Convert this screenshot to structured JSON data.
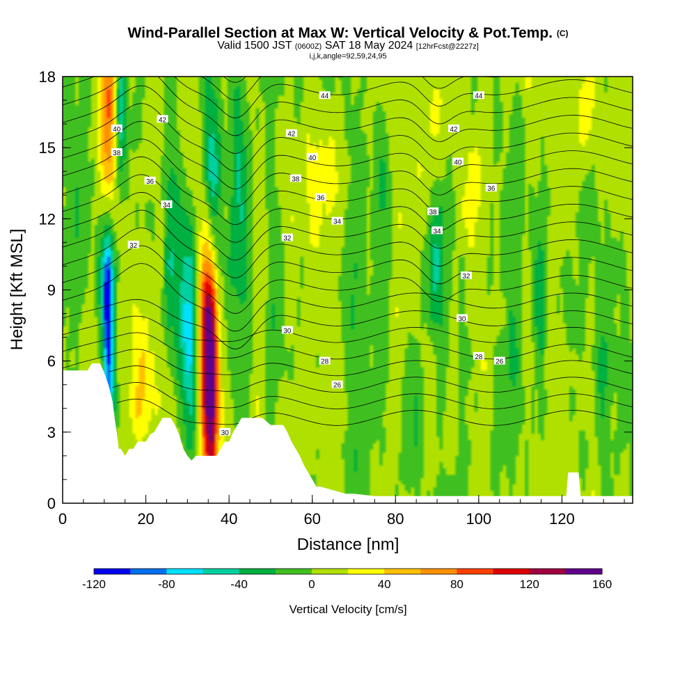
{
  "title": {
    "main": "Wind-Parallel Section at Max W: Vertical Velocity & Pot.Temp.",
    "copyright": "(C)",
    "valid_prefix": "Valid 1500 JST",
    "valid_utc": "(0600Z)",
    "valid_date": "SAT 18 May 2024",
    "forecast": "[12hrFcst@2227z]",
    "indices": "i,j,k,angle=92,59,24,95"
  },
  "colors": {
    "levels": [
      "#0000ee",
      "#0070ee",
      "#00e0ff",
      "#00d0a0",
      "#00b040",
      "#40c020",
      "#b0e000",
      "#ffff00",
      "#ffc000",
      "#ff9000",
      "#ff4000",
      "#e00000",
      "#a00040",
      "#60008c"
    ],
    "terrain": "#ffffff"
  },
  "chart_data": {
    "type": "heatmap",
    "xlabel": "Distance [nm]",
    "ylabel": "Height [Kft MSL]",
    "xlim": [
      0,
      137
    ],
    "ylim": [
      0,
      18
    ],
    "xticks": [
      "0",
      "20",
      "40",
      "60",
      "80",
      "100",
      "120"
    ],
    "yticks": [
      "0",
      "3",
      "6",
      "9",
      "12",
      "15",
      "18"
    ],
    "colorbar": {
      "label": "Vertical Velocity [cm/s]",
      "levels": [
        -120,
        -100,
        -80,
        -60,
        -40,
        -20,
        0,
        20,
        40,
        60,
        80,
        100,
        120,
        140,
        160
      ],
      "tick_labels": [
        "-120",
        "-80",
        "-40",
        "0",
        "40",
        "80",
        "120",
        "160"
      ]
    },
    "contour_field": "Potential temperature",
    "theta_levels": [
      26,
      28,
      30,
      32,
      34,
      36,
      38,
      40,
      42,
      44
    ],
    "contour_labels": [
      {
        "text": "44",
        "x": 63,
        "y": 17.2
      },
      {
        "text": "44",
        "x": 100,
        "y": 17.2
      },
      {
        "text": "42",
        "x": 24,
        "y": 16.2
      },
      {
        "text": "42",
        "x": 55,
        "y": 15.6
      },
      {
        "text": "42",
        "x": 94,
        "y": 15.8
      },
      {
        "text": "40",
        "x": 13,
        "y": 15.8
      },
      {
        "text": "40",
        "x": 60,
        "y": 14.6
      },
      {
        "text": "40",
        "x": 95,
        "y": 14.4
      },
      {
        "text": "38",
        "x": 13,
        "y": 14.8
      },
      {
        "text": "38",
        "x": 56,
        "y": 13.7
      },
      {
        "text": "38",
        "x": 89,
        "y": 12.3
      },
      {
        "text": "36",
        "x": 21,
        "y": 13.6
      },
      {
        "text": "36",
        "x": 62,
        "y": 12.9
      },
      {
        "text": "36",
        "x": 103,
        "y": 13.3
      },
      {
        "text": "34",
        "x": 25,
        "y": 12.6
      },
      {
        "text": "34",
        "x": 66,
        "y": 11.9
      },
      {
        "text": "34",
        "x": 90,
        "y": 11.5
      },
      {
        "text": "32",
        "x": 17,
        "y": 10.9
      },
      {
        "text": "32",
        "x": 54,
        "y": 11.2
      },
      {
        "text": "32",
        "x": 97,
        "y": 9.6
      },
      {
        "text": "30",
        "x": 54,
        "y": 7.3
      },
      {
        "text": "30",
        "x": 96,
        "y": 7.8
      },
      {
        "text": "30",
        "x": 39,
        "y": 3.0
      },
      {
        "text": "28",
        "x": 63,
        "y": 6.0
      },
      {
        "text": "28",
        "x": 100,
        "y": 6.2
      },
      {
        "text": "26",
        "x": 66,
        "y": 5.0
      },
      {
        "text": "26",
        "x": 105,
        "y": 6.0
      }
    ],
    "w_max_cm_s": 150,
    "w_max_location": {
      "x": 35.5,
      "y": 4.5
    },
    "terrain_kft": [
      [
        0,
        5.6
      ],
      [
        2,
        5.6
      ],
      [
        4,
        5.6
      ],
      [
        6,
        5.6
      ],
      [
        7,
        5.9
      ],
      [
        9,
        5.9
      ],
      [
        10,
        5.5
      ],
      [
        11,
        5.0
      ],
      [
        12,
        4.3
      ],
      [
        12.5,
        3.6
      ],
      [
        13,
        3.0
      ],
      [
        13.5,
        2.3
      ],
      [
        14,
        2.3
      ],
      [
        15,
        2.0
      ],
      [
        16,
        2.3
      ],
      [
        17,
        2.3
      ],
      [
        18,
        2.6
      ],
      [
        19,
        2.6
      ],
      [
        20,
        2.6
      ],
      [
        21,
        2.9
      ],
      [
        22,
        3.0
      ],
      [
        23,
        3.3
      ],
      [
        24,
        3.6
      ],
      [
        26,
        3.6
      ],
      [
        27,
        3.3
      ],
      [
        28,
        2.9
      ],
      [
        29,
        2.3
      ],
      [
        30,
        2.0
      ],
      [
        31,
        1.8
      ],
      [
        32,
        2.0
      ],
      [
        34,
        2.0
      ],
      [
        36,
        2.0
      ],
      [
        37,
        2.0
      ],
      [
        38,
        2.3
      ],
      [
        39,
        2.6
      ],
      [
        40,
        2.6
      ],
      [
        41,
        3.0
      ],
      [
        42,
        3.3
      ],
      [
        43,
        3.6
      ],
      [
        46,
        3.6
      ],
      [
        48,
        3.6
      ],
      [
        50,
        3.3
      ],
      [
        53,
        3.3
      ],
      [
        54,
        3.0
      ],
      [
        55,
        2.6
      ],
      [
        56,
        2.3
      ],
      [
        57,
        2.0
      ],
      [
        58,
        1.6
      ],
      [
        59,
        1.3
      ],
      [
        60,
        1.0
      ],
      [
        61,
        0.7
      ],
      [
        62,
        0.7
      ],
      [
        68,
        0.4
      ],
      [
        70,
        0.4
      ],
      [
        75,
        0.3
      ],
      [
        85,
        0.3
      ],
      [
        100,
        0.3
      ],
      [
        115,
        0.3
      ],
      [
        121,
        0.3
      ],
      [
        121.5,
        1.3
      ],
      [
        124,
        1.3
      ],
      [
        124.5,
        0.3
      ],
      [
        137,
        0.3
      ]
    ],
    "updrafts": [
      {
        "x": 35.5,
        "y": 4.5,
        "w": 150,
        "wx": 1.3,
        "wy": 3.2
      },
      {
        "x": 35.0,
        "y": 8.0,
        "w": 90,
        "wx": 1.6,
        "wy": 2.6
      },
      {
        "x": 11.0,
        "y": 16.5,
        "w": 90,
        "wx": 1.4,
        "wy": 3.0
      },
      {
        "x": 19.0,
        "y": 5.0,
        "w": 30,
        "wx": 1.4,
        "wy": 2.0
      },
      {
        "x": 62.0,
        "y": 13.5,
        "w": 25,
        "wx": 2.0,
        "wy": 2.5
      },
      {
        "x": 97.0,
        "y": 13.0,
        "w": 25,
        "wx": 2.0,
        "wy": 2.0
      },
      {
        "x": 90.0,
        "y": 17.0,
        "w": 25,
        "wx": 1.5,
        "wy": 1.5
      },
      {
        "x": 54.0,
        "y": 3.5,
        "w": 25,
        "wx": 1.6,
        "wy": 1.2
      },
      {
        "x": 125.0,
        "y": 16.0,
        "w": 25,
        "wx": 1.5,
        "wy": 1.5
      }
    ],
    "downdrafts": [
      {
        "x": 30.0,
        "y": 7.5,
        "w": -80,
        "wx": 1.6,
        "wy": 3.2
      },
      {
        "x": 11.0,
        "y": 6.5,
        "w": -110,
        "wx": 1.0,
        "wy": 3.0
      },
      {
        "x": 10.5,
        "y": 9.5,
        "w": -60,
        "wx": 1.4,
        "wy": 1.5
      },
      {
        "x": 14.0,
        "y": 17.0,
        "w": -70,
        "wx": 1.2,
        "wy": 2.0
      },
      {
        "x": 36.0,
        "y": 14.0,
        "w": -50,
        "wx": 1.6,
        "wy": 5.0
      },
      {
        "x": 42.0,
        "y": 14.0,
        "w": -50,
        "wx": 1.4,
        "wy": 5.0
      },
      {
        "x": 90.0,
        "y": 10.0,
        "w": -55,
        "wx": 1.6,
        "wy": 2.0
      },
      {
        "x": 26.0,
        "y": 12.0,
        "w": -35,
        "wx": 1.6,
        "wy": 4.0
      },
      {
        "x": 51.0,
        "y": 9.0,
        "w": -30,
        "wx": 1.5,
        "wy": 6.0
      },
      {
        "x": 70.0,
        "y": 9.0,
        "w": -30,
        "wx": 1.5,
        "wy": 6.0
      },
      {
        "x": 77.0,
        "y": 12.0,
        "w": -25,
        "wx": 1.5,
        "wy": 4.0
      },
      {
        "x": 108.0,
        "y": 7.0,
        "w": -25,
        "wx": 1.5,
        "wy": 5.0
      },
      {
        "x": 115.0,
        "y": 10.0,
        "w": -25,
        "wx": 1.5,
        "wy": 5.0
      },
      {
        "x": 4.0,
        "y": 12.0,
        "w": -25,
        "wx": 2.0,
        "wy": 3.0
      },
      {
        "x": 130.0,
        "y": 8.0,
        "w": -25,
        "wx": 1.5,
        "wy": 4.0
      },
      {
        "x": 85.0,
        "y": 3.0,
        "w": -25,
        "wx": 1.5,
        "wy": 2.0
      }
    ]
  }
}
